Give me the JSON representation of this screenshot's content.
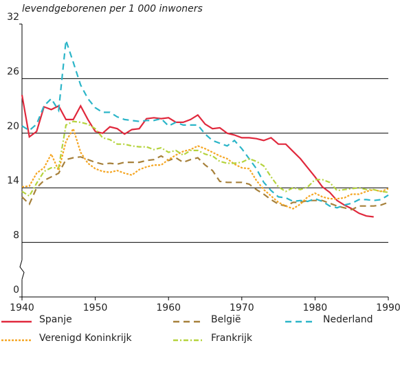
{
  "chart_data": {
    "type": "line",
    "y_label": "levendgeborenen per 1 000 inwoners",
    "xlim": [
      1940,
      1990
    ],
    "xticks": [
      1940,
      1950,
      1960,
      1970,
      1980,
      1990
    ],
    "ylim": [
      0,
      32
    ],
    "yticks": [
      0,
      8,
      14,
      20,
      26,
      32
    ],
    "y_axis_break": true,
    "grid": true,
    "x": [
      1940,
      1941,
      1942,
      1943,
      1944,
      1945,
      1946,
      1947,
      1948,
      1949,
      1950,
      1951,
      1952,
      1953,
      1954,
      1955,
      1956,
      1957,
      1958,
      1959,
      1960,
      1961,
      1962,
      1963,
      1964,
      1965,
      1966,
      1967,
      1968,
      1969,
      1970,
      1971,
      1972,
      1973,
      1974,
      1975,
      1976,
      1977,
      1978,
      1979,
      1980,
      1981,
      1982,
      1983,
      1984,
      1985,
      1986,
      1987,
      1988,
      1989,
      1990
    ],
    "series": [
      {
        "name": "Spanje",
        "color": "#e0283c",
        "style": "solid",
        "values": [
          24.2,
          19.6,
          20.2,
          22.9,
          22.6,
          23.0,
          21.5,
          21.5,
          23.0,
          21.5,
          20.2,
          20.0,
          20.7,
          20.5,
          19.9,
          20.4,
          20.5,
          21.6,
          21.7,
          21.6,
          21.7,
          21.2,
          21.2,
          21.5,
          22.0,
          21.0,
          20.5,
          20.6,
          20.0,
          19.8,
          19.5,
          19.5,
          19.4,
          19.2,
          19.5,
          18.8,
          18.8,
          18.0,
          17.2,
          16.2,
          15.2,
          14.1,
          13.5,
          12.6,
          12.1,
          11.7,
          11.2,
          10.9,
          10.8,
          null,
          null
        ]
      },
      {
        "name": "België",
        "color": "#a6803a",
        "style": "dashed",
        "values": [
          13.0,
          12.2,
          14.0,
          14.8,
          15.2,
          15.6,
          17.1,
          17.3,
          17.4,
          17.1,
          16.8,
          16.6,
          16.7,
          16.6,
          16.8,
          16.8,
          16.8,
          17.0,
          17.1,
          17.5,
          17.0,
          17.3,
          16.8,
          17.1,
          17.3,
          16.5,
          15.9,
          14.7,
          14.6,
          14.6,
          14.6,
          14.4,
          13.8,
          13.3,
          12.7,
          12.2,
          12.0,
          12.4,
          12.4,
          12.6,
          12.6,
          12.6,
          12.3,
          12.0,
          11.8,
          11.6,
          12.0,
          12.0,
          12.0,
          12.1,
          12.4
        ]
      },
      {
        "name": "Nederland",
        "color": "#2bb5c8",
        "style": "dashed",
        "values": [
          20.8,
          20.3,
          21.0,
          23.0,
          23.8,
          22.5,
          30.2,
          27.8,
          25.3,
          23.8,
          22.8,
          22.3,
          22.3,
          21.8,
          21.5,
          21.4,
          21.3,
          21.4,
          21.4,
          21.6,
          20.8,
          21.2,
          20.9,
          20.9,
          20.9,
          19.9,
          19.2,
          18.9,
          18.6,
          19.2,
          18.3,
          17.2,
          16.1,
          14.6,
          13.7,
          13.0,
          12.9,
          12.5,
          12.6,
          12.5,
          12.8,
          12.5,
          12.0,
          11.8,
          12.1,
          12.3,
          12.7,
          12.7,
          12.6,
          12.7,
          13.2
        ]
      },
      {
        "name": "Verenigd Koninkrijk",
        "color": "#f5a623",
        "style": "dotted",
        "values": [
          14.1,
          14.2,
          15.6,
          16.2,
          17.7,
          15.9,
          19.1,
          20.5,
          17.9,
          16.7,
          16.1,
          15.8,
          15.7,
          15.9,
          15.6,
          15.4,
          16.0,
          16.3,
          16.5,
          16.5,
          17.1,
          17.6,
          18.0,
          18.2,
          18.6,
          18.3,
          17.9,
          17.5,
          17.2,
          16.6,
          16.2,
          16.1,
          14.8,
          13.8,
          13.1,
          12.4,
          12.0,
          11.7,
          12.2,
          13.0,
          13.4,
          13.0,
          12.8,
          12.8,
          12.9,
          13.3,
          13.3,
          13.6,
          13.8,
          13.6,
          13.9
        ]
      },
      {
        "name": "Frankrijk",
        "color": "#b5d33d",
        "style": "dashdot",
        "values": [
          13.6,
          13.1,
          14.5,
          15.8,
          16.2,
          16.2,
          20.9,
          21.3,
          21.2,
          21.0,
          20.5,
          19.5,
          19.3,
          18.8,
          18.8,
          18.6,
          18.5,
          18.5,
          18.2,
          18.4,
          17.9,
          18.1,
          17.6,
          18.1,
          18.1,
          17.7,
          17.5,
          16.9,
          16.7,
          16.7,
          16.8,
          17.2,
          16.9,
          16.4,
          15.2,
          14.1,
          13.6,
          14.0,
          13.8,
          14.1,
          14.9,
          14.9,
          14.6,
          13.7,
          13.8,
          13.9,
          14.0,
          13.8,
          13.8,
          13.6,
          13.5
        ]
      }
    ]
  }
}
